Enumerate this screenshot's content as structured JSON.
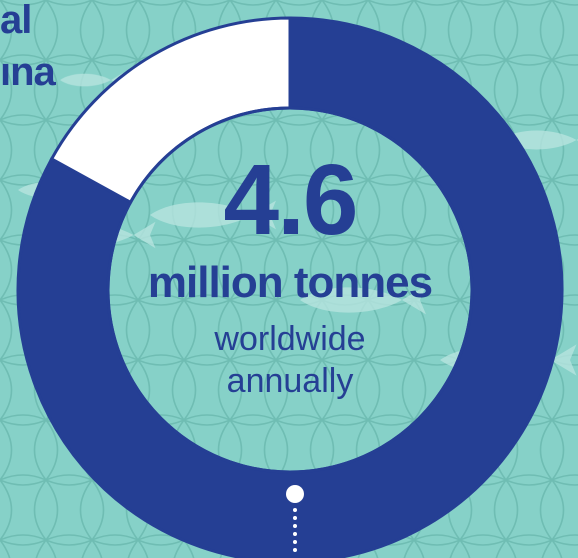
{
  "title_fragments": [
    "al",
    "ına"
  ],
  "chart_data": {
    "type": "pie",
    "title": "",
    "value_label": "4.6",
    "unit_label": "million tonnes",
    "description_lines": [
      "worldwide",
      "annually"
    ],
    "slices": [
      {
        "name": "",
        "value": 0.83
      },
      {
        "name": "",
        "value": 0.17
      }
    ],
    "colors": {
      "background": "#86d1c8",
      "primary": "#253f94",
      "remainder": "#ffffff",
      "net": "#6fbdb3",
      "fish": "#b7e4df"
    }
  }
}
